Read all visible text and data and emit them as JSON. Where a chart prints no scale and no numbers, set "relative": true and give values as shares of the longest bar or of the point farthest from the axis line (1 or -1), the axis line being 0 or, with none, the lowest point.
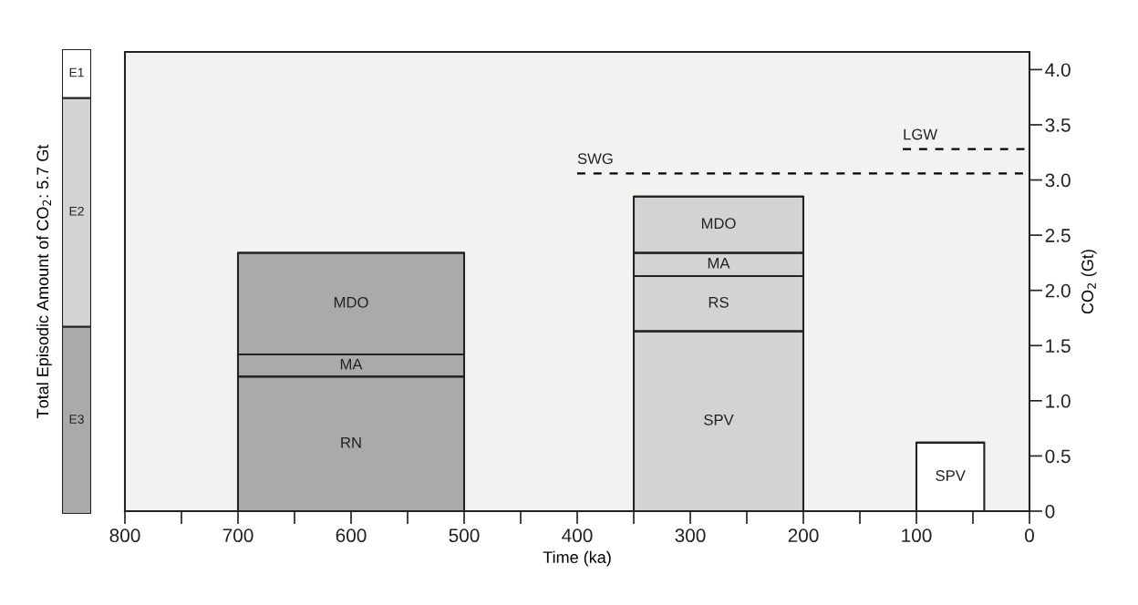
{
  "chart_data": [
    {
      "type": "bar",
      "stacked": true,
      "relative": true,
      "ylabel": "Total Episodic Amount of CO$_{2}$: 5.7 Gt",
      "categories": [
        null
      ],
      "series": [
        {
          "name": "E3",
          "color": "#aaaaaa",
          "values": [
            0.403
          ]
        },
        {
          "name": "E2",
          "color": "#d3d2d4",
          "values": [
            0.492
          ]
        },
        {
          "name": "E1",
          "color": "#ffffff",
          "values": [
            0.105
          ]
        }
      ]
    },
    {
      "type": "bar",
      "stacked": true,
      "xlabel": "Time (ka)",
      "ylabel": "CO$_{2}$ (Gt)",
      "xlim": [
        800,
        0
      ],
      "ylim": [
        0,
        4.16
      ],
      "xticks": [
        800,
        {
          "value": 750,
          "label": null
        },
        700,
        {
          "value": 650,
          "label": null
        },
        600,
        {
          "value": 550,
          "label": null
        },
        500,
        {
          "value": 450,
          "label": null
        },
        400,
        {
          "value": 350,
          "label": null
        },
        300,
        {
          "value": 250,
          "label": null
        },
        200,
        {
          "value": 150,
          "label": null
        },
        100,
        {
          "value": 50,
          "label": null
        },
        0
      ],
      "yticks": [
        0,
        {
          "value": 0.5,
          "label": "0.5"
        },
        {
          "value": 1.0,
          "label": "1.0"
        },
        {
          "value": 1.5,
          "label": "1.5"
        },
        {
          "value": 2.0,
          "label": "2.0"
        },
        {
          "value": 2.5,
          "label": "2.5"
        },
        {
          "value": 3.0,
          "label": "3.0"
        },
        {
          "value": 3.5,
          "label": "3.5"
        },
        {
          "value": 4.0,
          "label": "4.0"
        }
      ],
      "series": [
        {
          "x": [
            600,
            275,
            70
          ],
          "xerrors": [
            100,
            75,
            30
          ],
          "colors": [
            "#aaaaaa",
            "#d3d2d4",
            "#ffffff"
          ],
          "values": [
            1.22,
            1.63,
            0.62
          ],
          "value_labels": [
            "RN",
            "SPV",
            "SPV"
          ]
        },
        {
          "x": [
            600,
            275
          ],
          "xerrors": [
            100,
            75
          ],
          "colors": [
            "#aaaaaa",
            "#d3d2d4"
          ],
          "values": [
            0.2,
            0.5
          ],
          "value_labels": [
            "MA",
            "RS"
          ]
        },
        {
          "x": [
            600,
            275
          ],
          "xerrors": [
            100,
            75
          ],
          "colors": [
            "#aaaaaa",
            "#d3d2d4"
          ],
          "values": [
            0.92,
            0.21
          ],
          "value_labels": [
            "MDO",
            "MA"
          ]
        },
        {
          "x": [
            275
          ],
          "xerrors": [
            75
          ],
          "colors": [
            "#d3d2d4"
          ],
          "values": [
            0.51
          ],
          "value_labels": [
            "MDO"
          ]
        },
        {
          "name": "SWG",
          "type": "line",
          "line_style": "dashed",
          "color": "#000000",
          "x": [
            400,
            0
          ],
          "values": [
            3.06,
            3.06
          ]
        },
        {
          "name": "LGW",
          "type": "line",
          "line_style": "dashed",
          "color": "#000000",
          "x": [
            112,
            0
          ],
          "values": [
            3.28,
            3.28
          ]
        }
      ]
    }
  ]
}
